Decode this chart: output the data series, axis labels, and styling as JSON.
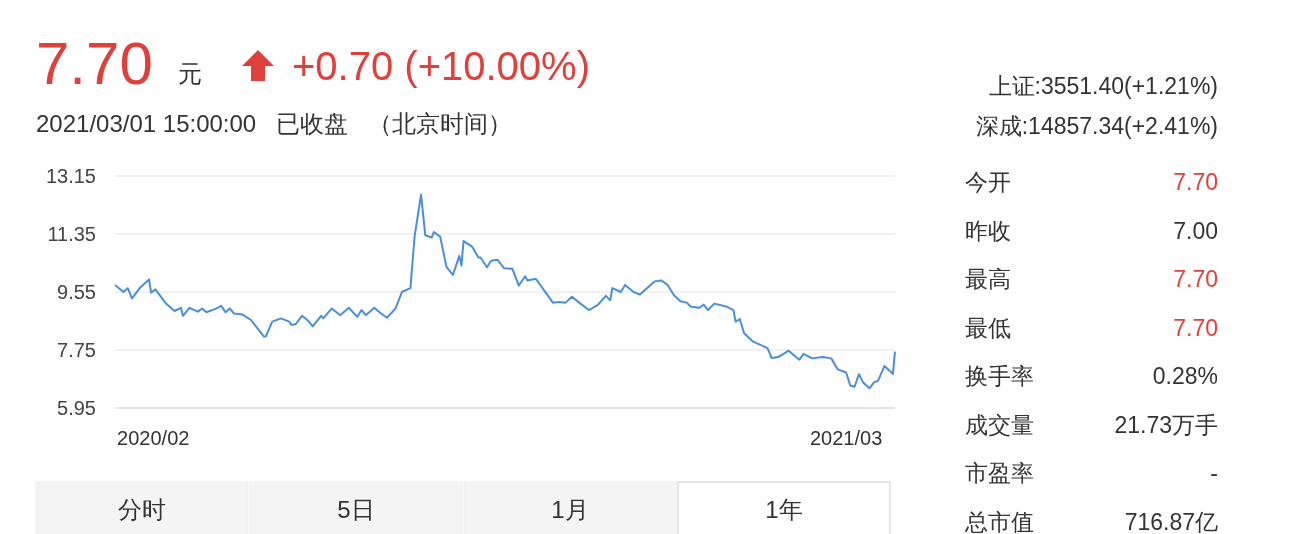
{
  "chart_data": [
    {
      "type": "line",
      "title": "7.70",
      "subtitle": "2021/03/01 15:00:00   已收盘   （北京时间）",
      "annotations": [
        "元",
        "+0.70 (+10.00%)",
        "分时",
        "5日",
        "1月",
        "1年"
      ],
      "x": [
        "2020-02-28",
        "2020-03-03",
        "2020-03-05",
        "2020-03-07",
        "2020-03-11",
        "2020-03-15",
        "2020-03-16",
        "2020-03-18",
        "2020-03-23",
        "2020-03-27",
        "2020-03-30",
        "2020-03-31",
        "2020-04-03",
        "2020-04-07",
        "2020-04-09",
        "2020-04-11",
        "2020-04-15",
        "2020-04-18",
        "2020-04-20",
        "2020-04-22",
        "2020-04-24",
        "2020-04-28",
        "2020-05-02",
        "2020-05-08",
        "2020-05-09",
        "2020-05-12",
        "2020-05-16",
        "2020-05-20",
        "2020-05-21",
        "2020-05-23",
        "2020-05-26",
        "2020-05-29",
        "2020-05-31",
        "2020-06-04",
        "2020-06-05",
        "2020-06-09",
        "2020-06-13",
        "2020-06-17",
        "2020-06-21",
        "2020-06-23",
        "2020-06-25",
        "2020-06-29",
        "2020-07-02",
        "2020-07-05",
        "2020-07-09",
        "2020-07-12",
        "2020-07-16",
        "2020-07-18",
        "2020-07-21",
        "2020-07-23",
        "2020-07-26",
        "2020-07-27",
        "2020-07-30",
        "2020-08-02",
        "2020-08-05",
        "2020-08-08",
        "2020-08-09",
        "2020-08-10",
        "2020-08-14",
        "2020-08-17",
        "2020-08-18",
        "2020-08-21",
        "2020-08-23",
        "2020-08-26",
        "2020-08-29",
        "2020-09-02",
        "2020-09-05",
        "2020-09-08",
        "2020-09-09",
        "2020-09-13",
        "2020-09-18",
        "2020-09-21",
        "2020-09-24",
        "2020-09-27",
        "2020-09-30",
        "2020-10-04",
        "2020-10-08",
        "2020-10-12",
        "2020-10-16",
        "2020-10-18",
        "2020-10-19",
        "2020-10-23",
        "2020-10-25",
        "2020-10-29",
        "2020-11-01",
        "2020-11-04",
        "2020-11-08",
        "2020-11-11",
        "2020-11-14",
        "2020-11-17",
        "2020-11-20",
        "2020-11-23",
        "2020-11-25",
        "2020-11-29",
        "2020-12-01",
        "2020-12-03",
        "2020-12-06",
        "2020-12-12",
        "2020-12-15",
        "2020-12-16",
        "2020-12-18",
        "2020-12-20",
        "2020-12-24",
        "2020-12-31",
        "2021-01-02",
        "2021-01-05",
        "2021-01-10",
        "2021-01-12",
        "2021-01-15",
        "2021-01-17",
        "2021-01-21",
        "2021-01-26",
        "2021-01-30",
        "2021-02-02",
        "2021-02-06",
        "2021-02-08",
        "2021-02-10",
        "2021-02-12",
        "2021-02-14",
        "2021-02-17",
        "2021-02-19",
        "2021-02-21",
        "2021-02-24",
        "2021-02-28",
        "2021-03-01"
      ],
      "series": [
        {
          "color": "#4a8fd8",
          "values": [
            9.77,
            9.55,
            9.67,
            9.35,
            9.7,
            9.94,
            9.53,
            9.63,
            9.19,
            8.96,
            9.06,
            8.81,
            9.06,
            8.94,
            9.04,
            8.92,
            9.02,
            9.12,
            8.92,
            9.04,
            8.88,
            8.85,
            8.68,
            8.17,
            8.17,
            8.63,
            8.73,
            8.63,
            8.53,
            8.55,
            8.81,
            8.65,
            8.48,
            8.81,
            8.73,
            9.04,
            8.83,
            9.06,
            8.78,
            8.99,
            8.83,
            9.06,
            8.89,
            8.75,
            9.04,
            9.55,
            9.67,
            11.29,
            12.57,
            11.31,
            11.24,
            11.41,
            11.27,
            10.32,
            10.08,
            10.67,
            10.37,
            11.13,
            10.96,
            10.62,
            10.62,
            10.32,
            10.52,
            10.55,
            10.29,
            10.27,
            9.75,
            10.04,
            9.91,
            9.96,
            9.5,
            9.22,
            9.24,
            9.22,
            9.4,
            9.19,
            8.99,
            9.14,
            9.43,
            9.29,
            9.67,
            9.55,
            9.77,
            9.55,
            9.47,
            9.65,
            9.88,
            9.91,
            9.77,
            9.45,
            9.26,
            9.22,
            9.09,
            9.06,
            9.16,
            8.99,
            9.19,
            9.09,
            8.99,
            8.63,
            8.71,
            8.27,
            8.02,
            7.81,
            7.5,
            7.53,
            7.73,
            7.61,
            7.45,
            7.63,
            7.49,
            7.53,
            7.49,
            7.15,
            7.05,
            6.64,
            6.61,
            7.0,
            6.74,
            6.56,
            6.74,
            6.79,
            7.25,
            7.01,
            7.7
          ]
        }
      ],
      "xlim": [
        "2020-02-28",
        "2021-03-01"
      ],
      "xticks": [
        {
          "value": "2020-03-17",
          "label": "2020/02"
        },
        {
          "value": "2021-02-06",
          "label": "2021/03"
        }
      ],
      "ylim": [
        5.95,
        13.15
      ],
      "yticks": [
        5.95,
        7.75,
        9.55,
        11.35,
        13.15
      ],
      "grid": "y",
      "marker": "none",
      "line_style": "solid"
    },
    {
      "type": "other",
      "annotations": [
        "上证:3551.40(+1.21%)",
        "深成:14857.34(+2.41%)"
      ],
      "categories": [
        "今开",
        "昨收",
        "最高",
        "最低",
        "换手率",
        "成交量",
        "市盈率",
        "总市值"
      ],
      "value_labels": [
        "7.70",
        "7.00",
        "7.70",
        "7.70",
        "0.28%",
        "21.73万手",
        "-",
        "716.87亿"
      ],
      "colors": [
        "#e0403a",
        "#333333",
        "#e0403a",
        "#e0403a",
        "#333333",
        "#333333",
        "#333333",
        "#333333"
      ]
    }
  ]
}
